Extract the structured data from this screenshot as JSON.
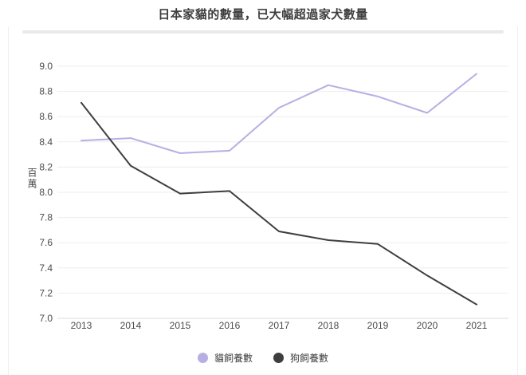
{
  "page": {
    "title": "日本家貓的數量，已大幅超過家犬數量"
  },
  "chart_data": {
    "type": "line",
    "title": "日本家貓的數量，已大幅超過家犬數量",
    "xlabel": "",
    "ylabel": "百萬",
    "categories": [
      "2013",
      "2014",
      "2015",
      "2016",
      "2017",
      "2018",
      "2019",
      "2020",
      "2021"
    ],
    "series": [
      {
        "key": "cat",
        "name": "貓飼養數",
        "color": "#b6afe2",
        "values": [
          8.41,
          8.43,
          8.31,
          8.33,
          8.67,
          8.85,
          8.76,
          8.63,
          8.94
        ]
      },
      {
        "key": "dog",
        "name": "狗飼養數",
        "color": "#3e3e3e",
        "values": [
          8.71,
          8.21,
          7.99,
          8.01,
          7.69,
          7.62,
          7.59,
          7.34,
          7.11
        ]
      }
    ],
    "ylim": [
      7.0,
      9.0
    ],
    "ytick_step": 0.2,
    "ytick_labels": [
      "7.0",
      "7.2",
      "7.4",
      "7.6",
      "7.8",
      "8.0",
      "8.2",
      "8.4",
      "8.6",
      "8.8",
      "9.0"
    ],
    "grid": true,
    "legend_position": "bottom"
  },
  "colors": {
    "title_text": "#3d3d3d",
    "tick_text": "#4a4a4a",
    "gridline": "#ededed",
    "bottom_axis": "#dedede",
    "divider": "#e9e9e9",
    "background": "#ffffff"
  }
}
